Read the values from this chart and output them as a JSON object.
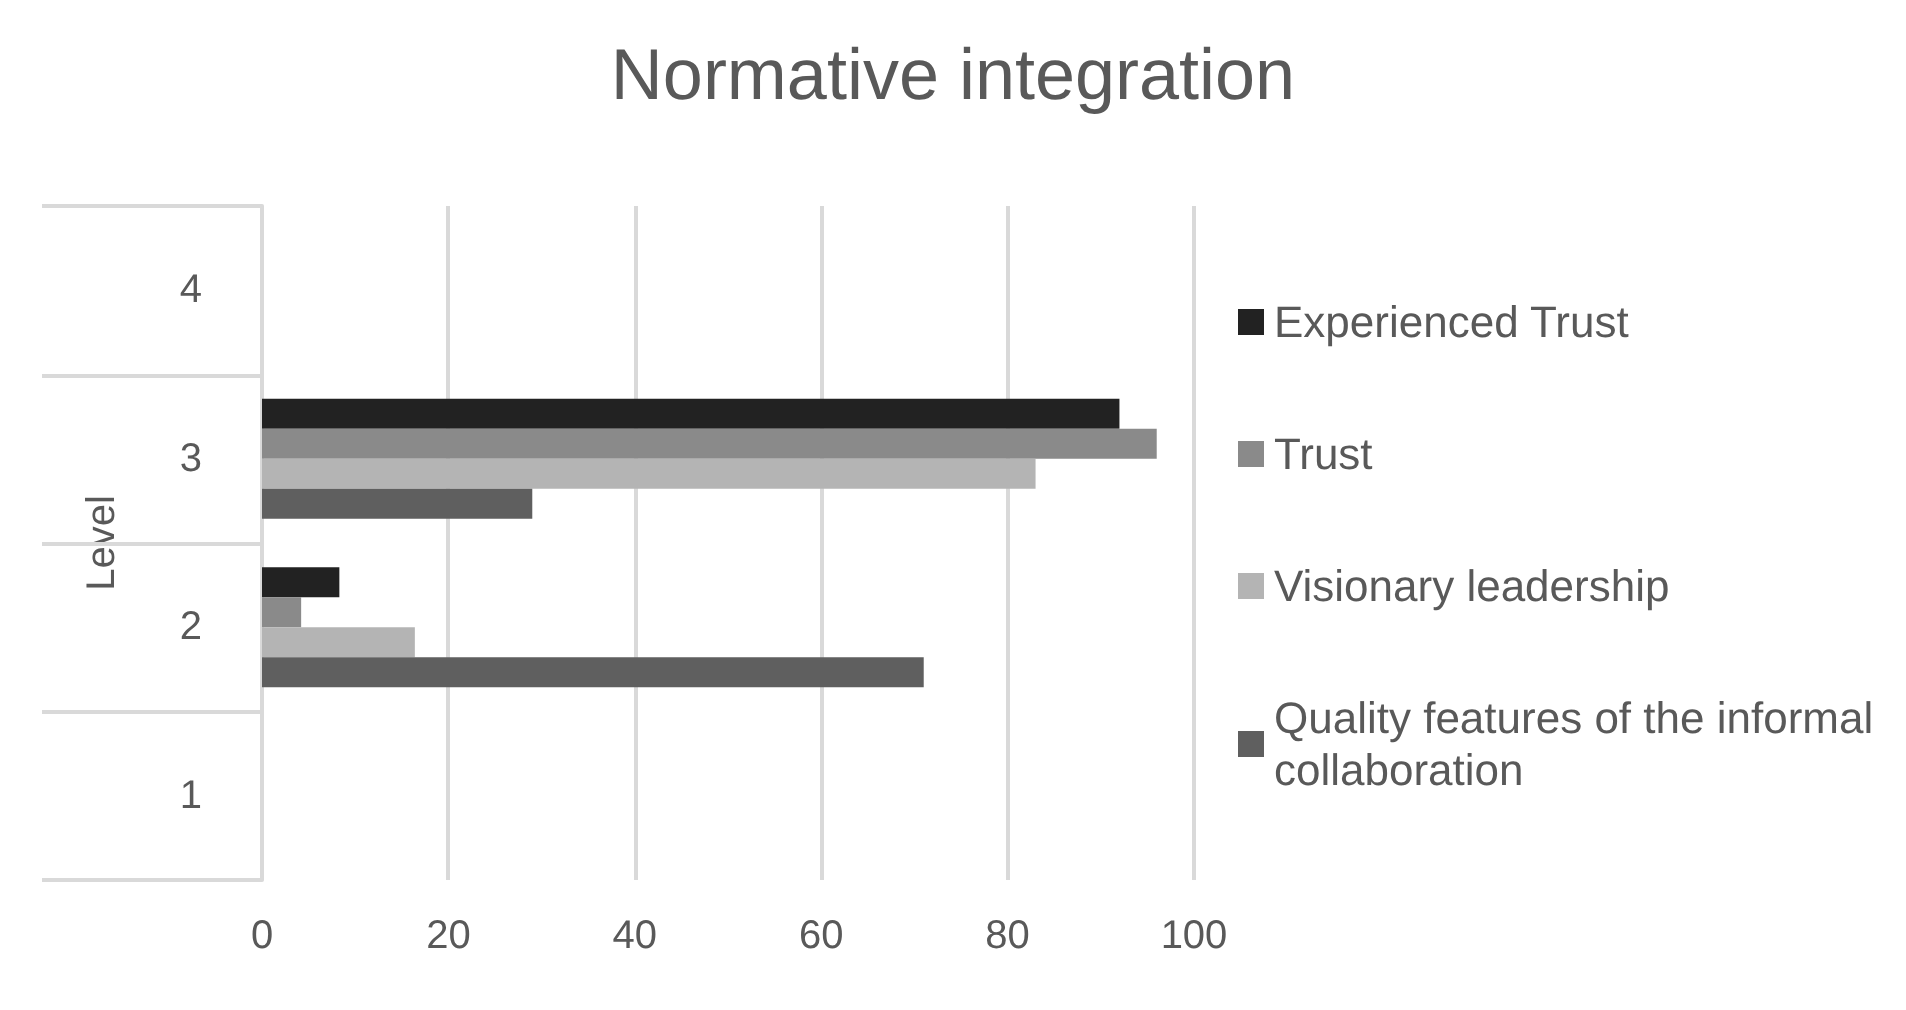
{
  "chart_data": {
    "type": "bar",
    "orientation": "horizontal",
    "title": "Normative integration",
    "ylabel": "Level",
    "categories": [
      "4",
      "3",
      "2",
      "1"
    ],
    "series": [
      {
        "name": "Experienced Trust",
        "color": "#222222",
        "values": [
          null,
          92,
          8.3,
          null
        ]
      },
      {
        "name": "Trust",
        "color": "#8a8a8a",
        "values": [
          null,
          96,
          4.2,
          null
        ]
      },
      {
        "name": "Visionary leadership",
        "color": "#b4b4b4",
        "values": [
          null,
          83,
          16.4,
          null
        ]
      },
      {
        "name": "Quality features of the informal collaboration",
        "color": "#5f5f5f",
        "values": [
          null,
          29,
          71,
          null
        ]
      }
    ],
    "xlim": [
      0,
      100
    ],
    "xticks": [
      0,
      20,
      40,
      60,
      80,
      100
    ],
    "grid": "x",
    "legend": "right"
  }
}
